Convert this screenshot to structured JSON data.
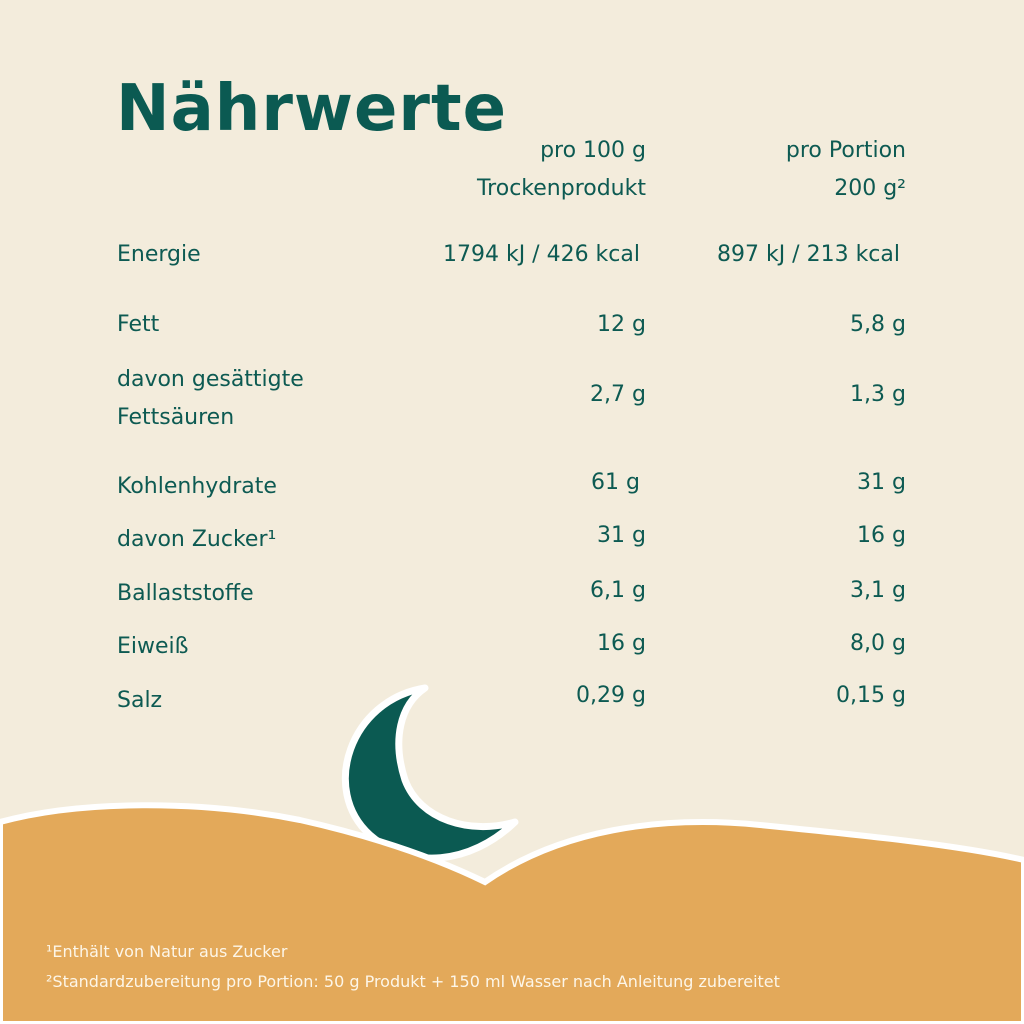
{
  "title": "Nährwerte",
  "headers": {
    "col1_line1": "pro 100 g",
    "col1_line2": "Trockenprodukt",
    "col2_line1": "pro Portion",
    "col2_line2": "200 g²"
  },
  "rows": [
    {
      "label": "Energie",
      "per100": "1794 kJ / 426 kcal",
      "portion": "897 kJ / 213 kcal"
    },
    {
      "label": "Fett",
      "per100": "12 g",
      "portion": "5,8 g"
    },
    {
      "label": "davon gesättigte",
      "label2": "Fettsäuren",
      "per100": "2,7 g",
      "portion": "1,3 g"
    },
    {
      "label": "Kohlenhydrate",
      "per100": "61 g",
      "portion": "31 g"
    },
    {
      "label": "davon Zucker¹",
      "per100": "31 g",
      "portion": "16 g"
    },
    {
      "label": "Ballaststoffe",
      "per100": "6,1 g",
      "portion": "3,1 g"
    },
    {
      "label": "Eiweiß",
      "per100": "16 g",
      "portion": "8,0 g"
    },
    {
      "label": "Salz",
      "per100": "0,29 g",
      "portion": "0,15 g"
    }
  ],
  "footnotes": [
    "¹Enthält von Natur aus Zucker",
    "²Standardzubereitung pro Portion: 50 g Produkt + 150 ml Wasser nach Anleitung zubereitet"
  ],
  "colors": {
    "background": "#f3ecdc",
    "teal": "#0b5a52",
    "sand": "#e3a95a"
  },
  "icons": [
    "moon-icon"
  ]
}
